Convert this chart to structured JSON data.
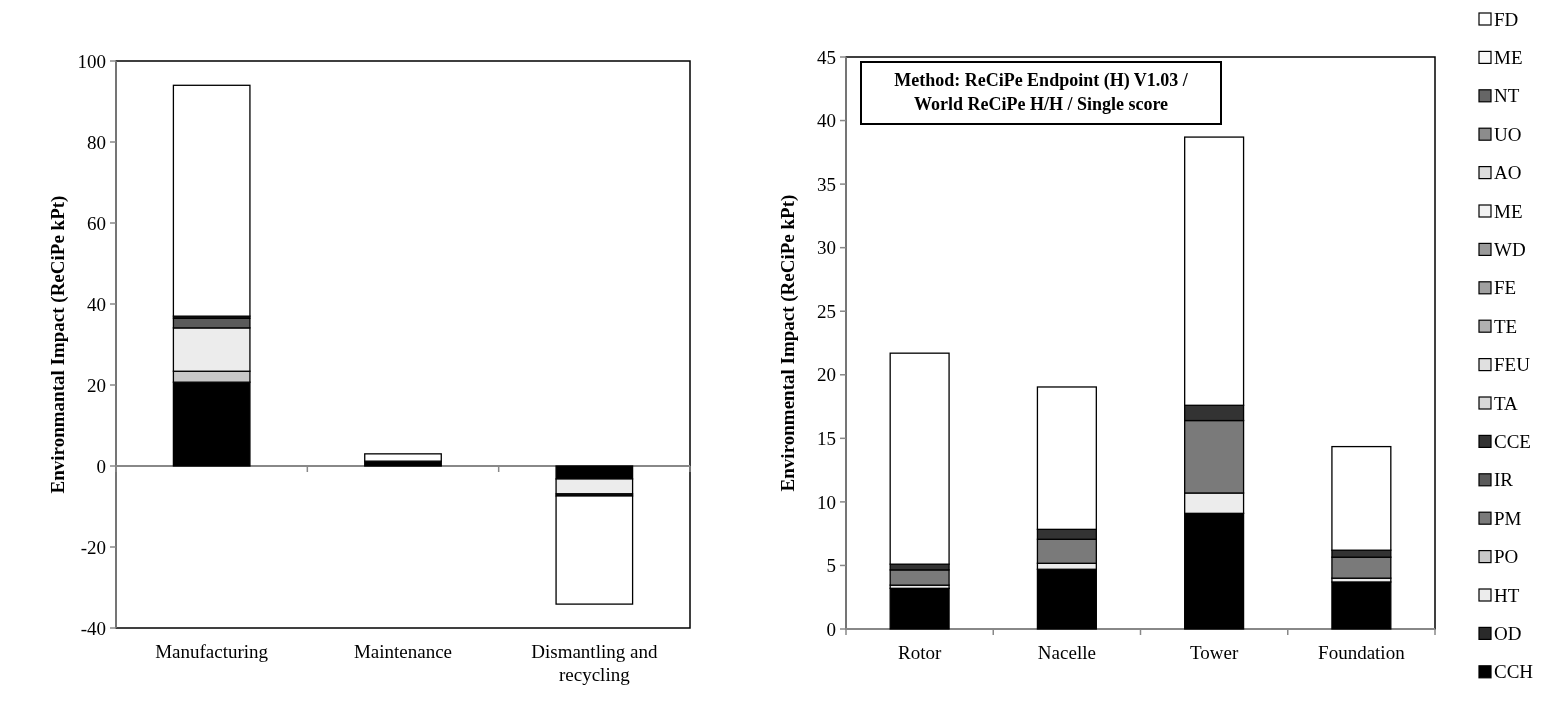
{
  "chart_data": [
    {
      "type": "bar",
      "stacked": true,
      "ylabel": "Environmantal Impact (ReCiPe kPt)",
      "categories": [
        "Manufacturing",
        "Maintenance",
        "Dismantling and recycling"
      ],
      "ylim": [
        -40,
        100
      ],
      "yticks": [
        -40,
        -20,
        0,
        20,
        40,
        60,
        80,
        100
      ],
      "legend": false,
      "series": [
        {
          "color": "#000000",
          "values": [
            20.7,
            1.2,
            -3.2
          ]
        },
        {
          "color": "#c8c8c8",
          "values": [
            2.7,
            0,
            0
          ]
        },
        {
          "color": "#ececec",
          "values": [
            10.7,
            0,
            -3.7
          ]
        },
        {
          "color": "#5a5a5a",
          "values": [
            2.4,
            0,
            0
          ]
        },
        {
          "color": "#1a1a1a",
          "values": [
            0.5,
            0,
            -0.5
          ]
        },
        {
          "color": "#ffffff",
          "values": [
            57,
            1.8,
            -26.7
          ]
        }
      ]
    },
    {
      "type": "bar",
      "stacked": true,
      "ylabel": "Environmental Impact (ReCiPe kPt)",
      "categories": [
        "Rotor",
        "Nacelle",
        "Tower",
        "Foundation"
      ],
      "ylim": [
        0,
        45
      ],
      "yticks": [
        0,
        5,
        10,
        15,
        20,
        25,
        30,
        35,
        40,
        45
      ],
      "legend": "right",
      "annotations": [
        "Method: ReCiPe Endpoint (H) V1.03 / World ReCiPe H/H / Single score"
      ],
      "series": [
        {
          "name": "CCH",
          "color": "#000000",
          "values": [
            3.2,
            4.7,
            9.1,
            3.7
          ]
        },
        {
          "name": "OD",
          "color": "#2a2a2a",
          "values": [
            0,
            0,
            0,
            0
          ]
        },
        {
          "name": "HT",
          "color": "#ececec",
          "values": [
            0.25,
            0.47,
            1.6,
            0.3
          ]
        },
        {
          "name": "PO",
          "color": "#c8c8c8",
          "values": [
            0,
            0,
            0,
            0
          ]
        },
        {
          "name": "PM",
          "color": "#7a7a7a",
          "values": [
            1.2,
            1.89,
            5.7,
            1.65
          ]
        },
        {
          "name": "IR",
          "color": "#5a5a5a",
          "values": [
            0,
            0,
            0,
            0
          ]
        },
        {
          "name": "CCE",
          "color": "#333333",
          "values": [
            0.45,
            0.78,
            1.2,
            0.55
          ]
        },
        {
          "name": "TA",
          "color": "#d8d8d8",
          "values": [
            0,
            0,
            0,
            0
          ]
        },
        {
          "name": "FEU",
          "color": "#e0e0e0",
          "values": [
            0,
            0,
            0,
            0
          ]
        },
        {
          "name": "TE",
          "color": "#b0b0b0",
          "values": [
            0,
            0,
            0,
            0
          ]
        },
        {
          "name": "FE",
          "color": "#a0a0a0",
          "values": [
            0,
            0,
            0,
            0
          ]
        },
        {
          "name": "WD",
          "color": "#9a9a9a",
          "values": [
            0,
            0,
            0,
            0
          ]
        },
        {
          "name": "ME",
          "color": "#f2f2f2",
          "values": [
            0,
            0,
            0,
            0
          ]
        },
        {
          "name": "AO",
          "color": "#dddddd",
          "values": [
            0,
            0,
            0,
            0
          ]
        },
        {
          "name": "UO",
          "color": "#8c8c8c",
          "values": [
            0,
            0,
            0,
            0
          ]
        },
        {
          "name": "NT",
          "color": "#666666",
          "values": [
            0,
            0,
            0,
            0
          ]
        },
        {
          "name": "ME",
          "color": "#f8f8f8",
          "values": [
            0,
            0,
            0,
            0
          ]
        },
        {
          "name": "FD",
          "color": "#ffffff",
          "values": [
            16.6,
            11.2,
            21.1,
            8.15
          ]
        }
      ]
    }
  ]
}
